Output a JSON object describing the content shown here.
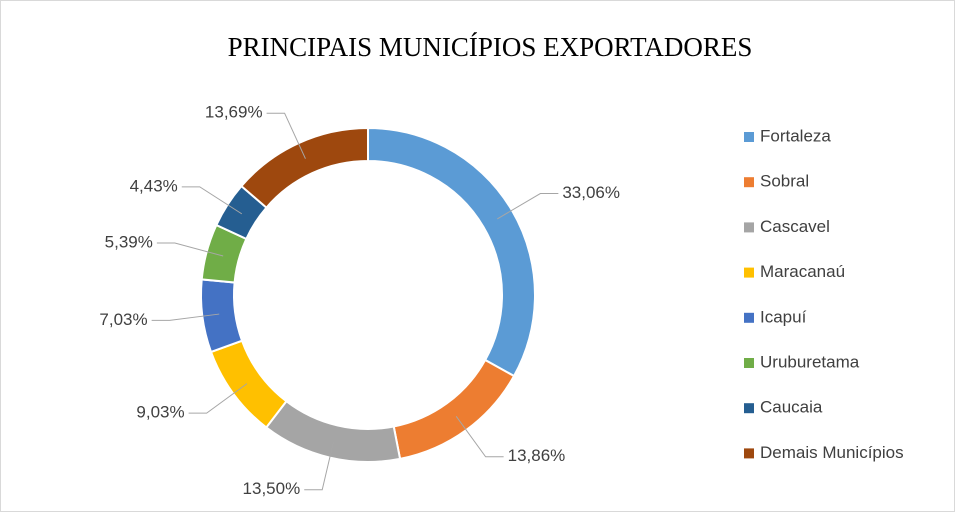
{
  "chart_data": {
    "type": "donut",
    "title": "PRINCIPAIS MUNICÍPIOS EXPORTADORES",
    "categories": [
      "Fortaleza",
      "Sobral",
      "Cascavel",
      "Maracanaú",
      "Icapuí",
      "Uruburetama",
      "Caucaia",
      "Demais Municípios"
    ],
    "values": [
      33.06,
      13.86,
      13.5,
      9.03,
      7.03,
      5.39,
      4.43,
      13.69
    ],
    "value_labels": [
      "33,06%",
      "13,86%",
      "13,50%",
      "9,03%",
      "7,03%",
      "5,39%",
      "4,43%",
      "13,69%"
    ],
    "colors": [
      "#5b9bd5",
      "#ed7d31",
      "#a5a5a5",
      "#ffc000",
      "#4472c4",
      "#70ad47",
      "#255e91",
      "#9e480e"
    ],
    "legend": "right"
  }
}
